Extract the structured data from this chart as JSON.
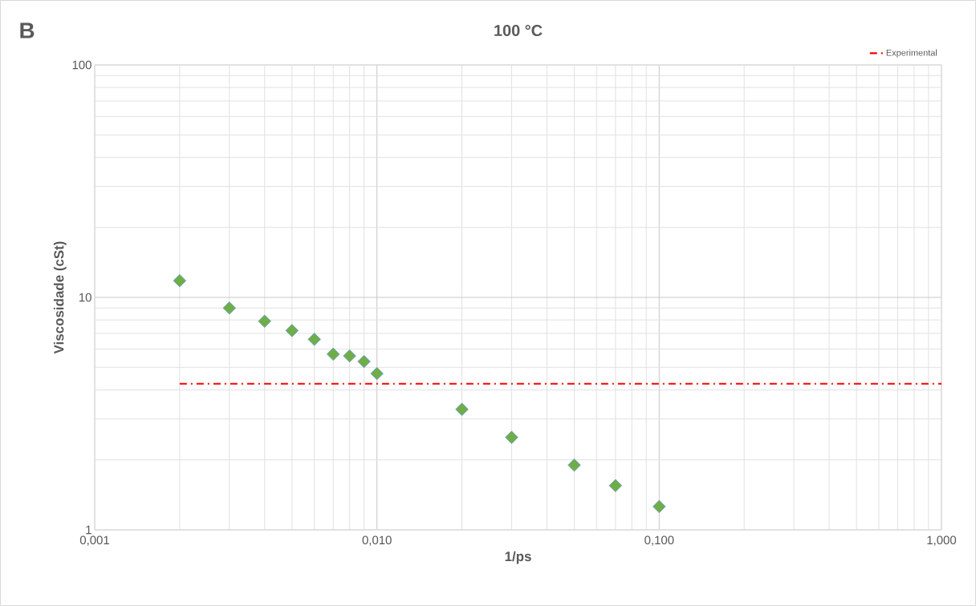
{
  "chart_data": {
    "type": "scatter",
    "title": "100 °C",
    "xlabel": "1/ps",
    "ylabel": "Viscosidade (cSt)",
    "annotations": [
      "B"
    ],
    "log": "xy",
    "grid": true,
    "legend": "top right",
    "marker": "diamond",
    "xlim": [
      0.001,
      1
    ],
    "ylim": [
      1,
      100
    ],
    "xticks": [
      {
        "value": 0.001,
        "label": "0,001"
      },
      {
        "value": 0.01,
        "label": "0,010"
      },
      {
        "value": 0.1,
        "label": "0,100"
      },
      {
        "value": 1,
        "label": "1,000"
      }
    ],
    "yticks": [
      1,
      10,
      100
    ],
    "series": [
      {
        "color": "#70ad47",
        "x": [
          0.002,
          0.003,
          0.004,
          0.005,
          0.006,
          0.007,
          0.008,
          0.009,
          0.01,
          0.02,
          0.03,
          0.05,
          0.07,
          0.1
        ],
        "values": [
          11.8,
          9.0,
          7.9,
          7.2,
          6.6,
          5.7,
          5.6,
          5.3,
          4.7,
          3.3,
          2.5,
          1.9,
          1.55,
          1.26
        ]
      },
      {
        "type": "line",
        "name": "Experimental",
        "color": "#ff0000",
        "line_style": "dashed",
        "marker": "none",
        "x": [
          0.002,
          1
        ],
        "values": [
          4.25,
          4.25
        ]
      }
    ]
  }
}
